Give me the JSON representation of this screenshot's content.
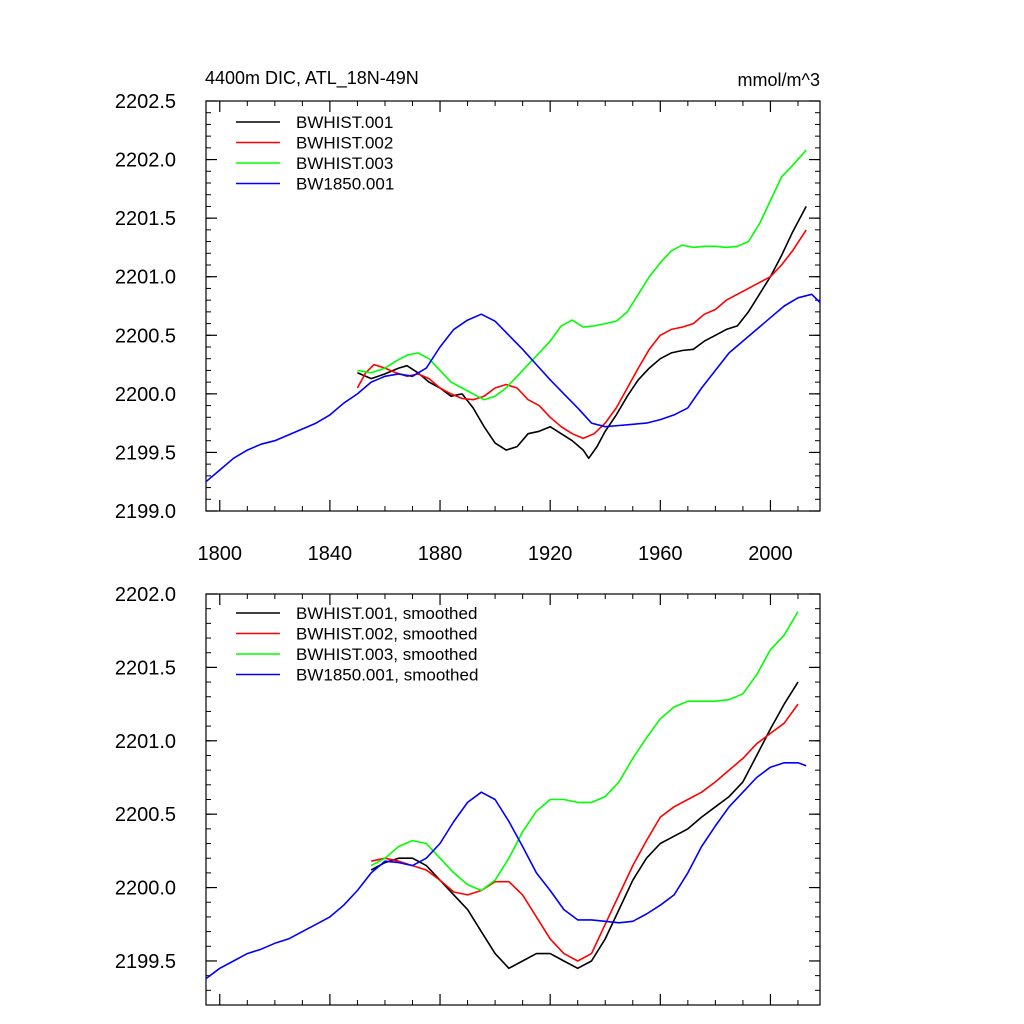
{
  "chart_data": [
    {
      "type": "line",
      "title": "4400m DIC, ATL_18N-49N",
      "units": "mmol/m^3",
      "xlim": [
        1795,
        2018
      ],
      "ylim": [
        2199.0,
        2202.5
      ],
      "xticks": [
        1800,
        1840,
        1880,
        1920,
        1960,
        2000
      ],
      "xtick_labels": [
        "1800",
        "1840",
        "1880",
        "1920",
        "1960",
        "2000"
      ],
      "yticks": [
        2199.0,
        2199.5,
        2200.0,
        2200.5,
        2201.0,
        2201.5,
        2202.0,
        2202.5
      ],
      "ytick_labels": [
        "2199.0",
        "2199.5",
        "2200.0",
        "2200.5",
        "2201.0",
        "2201.5",
        "2202.0",
        "2202.5"
      ],
      "legend_position": "top-left",
      "series": [
        {
          "name": "BWHIST.001",
          "color": "#000000",
          "x": [
            1850,
            1855,
            1860,
            1865,
            1868,
            1872,
            1876,
            1880,
            1884,
            1888,
            1892,
            1896,
            1900,
            1904,
            1908,
            1912,
            1916,
            1920,
            1924,
            1928,
            1932,
            1934,
            1937,
            1940,
            1944,
            1948,
            1952,
            1956,
            1960,
            1964,
            1968,
            1972,
            1976,
            1980,
            1984,
            1988,
            1992,
            1996,
            2000,
            2004,
            2008,
            2013
          ],
          "y": [
            2200.18,
            2200.13,
            2200.17,
            2200.22,
            2200.24,
            2200.18,
            2200.1,
            2200.05,
            2199.98,
            2200.0,
            2199.88,
            2199.72,
            2199.58,
            2199.52,
            2199.55,
            2199.66,
            2199.68,
            2199.72,
            2199.66,
            2199.6,
            2199.52,
            2199.45,
            2199.55,
            2199.68,
            2199.82,
            2199.98,
            2200.12,
            2200.22,
            2200.3,
            2200.35,
            2200.37,
            2200.38,
            2200.45,
            2200.5,
            2200.55,
            2200.58,
            2200.7,
            2200.85,
            2201.0,
            2201.18,
            2201.38,
            2201.6
          ]
        },
        {
          "name": "BWHIST.002",
          "color": "#ff0000",
          "x": [
            1850,
            1853,
            1856,
            1860,
            1864,
            1868,
            1872,
            1876,
            1880,
            1884,
            1888,
            1892,
            1896,
            1900,
            1904,
            1908,
            1912,
            1916,
            1920,
            1924,
            1928,
            1932,
            1936,
            1940,
            1944,
            1948,
            1952,
            1956,
            1960,
            1964,
            1968,
            1972,
            1976,
            1980,
            1984,
            1988,
            1992,
            1996,
            2000,
            2004,
            2008,
            2013
          ],
          "y": [
            2200.05,
            2200.18,
            2200.25,
            2200.22,
            2200.18,
            2200.15,
            2200.17,
            2200.13,
            2200.05,
            2200.0,
            2199.96,
            2199.95,
            2199.98,
            2200.05,
            2200.08,
            2200.05,
            2199.95,
            2199.9,
            2199.8,
            2199.72,
            2199.66,
            2199.62,
            2199.66,
            2199.75,
            2199.88,
            2200.05,
            2200.22,
            2200.38,
            2200.5,
            2200.55,
            2200.57,
            2200.6,
            2200.68,
            2200.72,
            2200.8,
            2200.85,
            2200.9,
            2200.95,
            2201.0,
            2201.1,
            2201.22,
            2201.4
          ]
        },
        {
          "name": "BWHIST.003",
          "color": "#00ff00",
          "x": [
            1850,
            1855,
            1860,
            1864,
            1868,
            1872,
            1876,
            1880,
            1884,
            1888,
            1892,
            1896,
            1900,
            1904,
            1908,
            1912,
            1916,
            1920,
            1924,
            1928,
            1932,
            1936,
            1940,
            1944,
            1948,
            1952,
            1956,
            1960,
            1964,
            1968,
            1972,
            1976,
            1980,
            1984,
            1988,
            1992,
            1996,
            2000,
            2004,
            2008,
            2013
          ],
          "y": [
            2200.2,
            2200.18,
            2200.22,
            2200.28,
            2200.33,
            2200.35,
            2200.3,
            2200.2,
            2200.1,
            2200.05,
            2200.0,
            2199.95,
            2199.98,
            2200.05,
            2200.15,
            2200.25,
            2200.35,
            2200.45,
            2200.58,
            2200.63,
            2200.57,
            2200.58,
            2200.6,
            2200.62,
            2200.7,
            2200.85,
            2201.0,
            2201.12,
            2201.22,
            2201.27,
            2201.25,
            2201.26,
            2201.26,
            2201.25,
            2201.26,
            2201.3,
            2201.45,
            2201.65,
            2201.85,
            2201.95,
            2202.08
          ]
        },
        {
          "name": "BW1850.001",
          "color": "#0000ff",
          "x": [
            1795,
            1800,
            1805,
            1810,
            1815,
            1820,
            1825,
            1830,
            1835,
            1840,
            1845,
            1850,
            1855,
            1860,
            1865,
            1870,
            1875,
            1880,
            1885,
            1890,
            1895,
            1900,
            1905,
            1910,
            1915,
            1920,
            1925,
            1930,
            1935,
            1940,
            1945,
            1950,
            1955,
            1960,
            1965,
            1970,
            1975,
            1980,
            1985,
            1990,
            1995,
            2000,
            2005,
            2010,
            2015,
            2018
          ],
          "y": [
            2199.25,
            2199.35,
            2199.45,
            2199.52,
            2199.57,
            2199.6,
            2199.65,
            2199.7,
            2199.75,
            2199.82,
            2199.92,
            2200.0,
            2200.1,
            2200.15,
            2200.17,
            2200.15,
            2200.22,
            2200.4,
            2200.55,
            2200.63,
            2200.68,
            2200.62,
            2200.5,
            2200.38,
            2200.25,
            2200.12,
            2200.0,
            2199.88,
            2199.75,
            2199.72,
            2199.73,
            2199.74,
            2199.75,
            2199.78,
            2199.82,
            2199.88,
            2200.05,
            2200.2,
            2200.35,
            2200.45,
            2200.55,
            2200.65,
            2200.75,
            2200.82,
            2200.85,
            2200.78
          ]
        }
      ]
    },
    {
      "type": "line",
      "title": "",
      "xlim": [
        1795,
        2018
      ],
      "ylim": [
        2199.2,
        2202.0
      ],
      "xticks": [
        1800,
        1840,
        1880,
        1920,
        1960,
        2000
      ],
      "xtick_labels": [],
      "yticks": [
        2199.5,
        2200.0,
        2200.5,
        2201.0,
        2201.5,
        2202.0
      ],
      "ytick_labels": [
        "2199.5",
        "2200.0",
        "2200.5",
        "2201.0",
        "2201.5",
        "2202.0"
      ],
      "legend_position": "top-left",
      "series": [
        {
          "name": "BWHIST.001, smoothed",
          "color": "#000000",
          "x": [
            1855,
            1860,
            1865,
            1870,
            1875,
            1880,
            1885,
            1890,
            1895,
            1900,
            1905,
            1910,
            1915,
            1920,
            1925,
            1930,
            1935,
            1940,
            1945,
            1950,
            1955,
            1960,
            1965,
            1970,
            1975,
            1980,
            1985,
            1990,
            1995,
            2000,
            2005,
            2010
          ],
          "y": [
            2200.12,
            2200.17,
            2200.2,
            2200.2,
            2200.15,
            2200.05,
            2199.95,
            2199.85,
            2199.7,
            2199.55,
            2199.45,
            2199.5,
            2199.55,
            2199.55,
            2199.5,
            2199.45,
            2199.5,
            2199.65,
            2199.85,
            2200.05,
            2200.2,
            2200.3,
            2200.35,
            2200.4,
            2200.48,
            2200.55,
            2200.62,
            2200.72,
            2200.9,
            2201.08,
            2201.25,
            2201.4
          ]
        },
        {
          "name": "BWHIST.002, smoothed",
          "color": "#ff0000",
          "x": [
            1855,
            1860,
            1865,
            1870,
            1875,
            1880,
            1885,
            1890,
            1895,
            1900,
            1905,
            1910,
            1915,
            1920,
            1925,
            1930,
            1935,
            1940,
            1945,
            1950,
            1955,
            1960,
            1965,
            1970,
            1975,
            1980,
            1985,
            1990,
            1995,
            2000,
            2005,
            2010
          ],
          "y": [
            2200.18,
            2200.2,
            2200.18,
            2200.15,
            2200.12,
            2200.05,
            2199.97,
            2199.95,
            2199.98,
            2200.04,
            2200.04,
            2199.95,
            2199.8,
            2199.65,
            2199.55,
            2199.5,
            2199.55,
            2199.75,
            2199.95,
            2200.15,
            2200.32,
            2200.48,
            2200.55,
            2200.6,
            2200.65,
            2200.72,
            2200.8,
            2200.88,
            2200.98,
            2201.05,
            2201.12,
            2201.25
          ]
        },
        {
          "name": "BWHIST.003, smoothed",
          "color": "#00ff00",
          "x": [
            1855,
            1860,
            1865,
            1870,
            1875,
            1880,
            1885,
            1890,
            1895,
            1900,
            1905,
            1910,
            1915,
            1920,
            1925,
            1930,
            1935,
            1940,
            1945,
            1950,
            1955,
            1960,
            1965,
            1970,
            1975,
            1980,
            1985,
            1990,
            1995,
            2000,
            2005,
            2010
          ],
          "y": [
            2200.15,
            2200.2,
            2200.28,
            2200.32,
            2200.3,
            2200.2,
            2200.1,
            2200.02,
            2199.98,
            2200.05,
            2200.2,
            2200.38,
            2200.52,
            2200.6,
            2200.6,
            2200.58,
            2200.58,
            2200.62,
            2200.72,
            2200.88,
            2201.02,
            2201.15,
            2201.23,
            2201.27,
            2201.27,
            2201.27,
            2201.28,
            2201.32,
            2201.45,
            2201.62,
            2201.72,
            2201.88
          ]
        },
        {
          "name": "BW1850.001, smoothed",
          "color": "#0000ff",
          "x": [
            1795,
            1800,
            1805,
            1810,
            1815,
            1820,
            1825,
            1830,
            1835,
            1840,
            1845,
            1850,
            1855,
            1860,
            1865,
            1870,
            1875,
            1880,
            1885,
            1890,
            1895,
            1900,
            1905,
            1910,
            1915,
            1920,
            1925,
            1930,
            1935,
            1940,
            1945,
            1950,
            1955,
            1960,
            1965,
            1970,
            1975,
            1980,
            1985,
            1990,
            1995,
            2000,
            2005,
            2010,
            2013
          ],
          "y": [
            2199.38,
            2199.45,
            2199.5,
            2199.55,
            2199.58,
            2199.62,
            2199.65,
            2199.7,
            2199.75,
            2199.8,
            2199.88,
            2199.98,
            2200.1,
            2200.18,
            2200.17,
            2200.15,
            2200.2,
            2200.3,
            2200.45,
            2200.58,
            2200.65,
            2200.6,
            2200.45,
            2200.28,
            2200.1,
            2199.98,
            2199.85,
            2199.78,
            2199.78,
            2199.77,
            2199.76,
            2199.77,
            2199.82,
            2199.88,
            2199.95,
            2200.1,
            2200.28,
            2200.42,
            2200.55,
            2200.65,
            2200.75,
            2200.82,
            2200.85,
            2200.85,
            2200.83
          ]
        }
      ]
    }
  ]
}
